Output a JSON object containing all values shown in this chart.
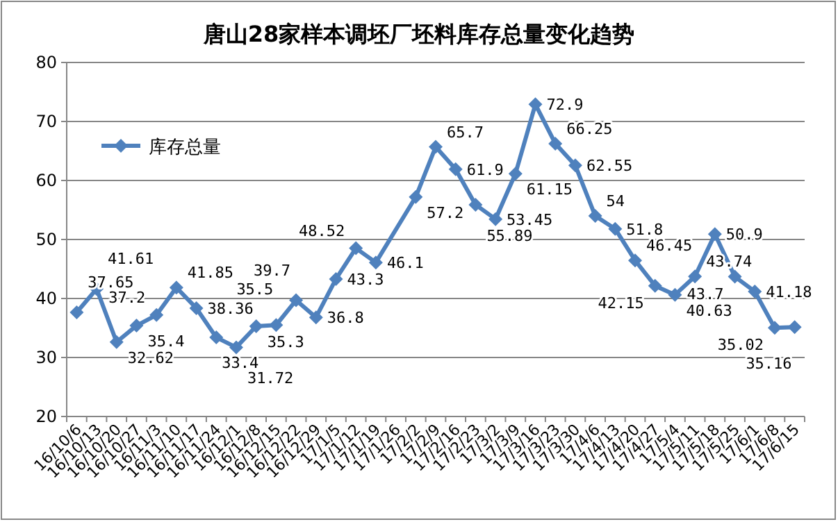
{
  "chart_data": {
    "type": "line",
    "title": "唐山28家样本调坯厂坯料库存总量变化趋势",
    "categories": [
      "16/10/6",
      "16/10/13",
      "16/10/20",
      "16/10/27",
      "16/11/3",
      "16/11/10",
      "16/11/17",
      "16/11/24",
      "16/12/1",
      "16/12/8",
      "16/12/15",
      "16/12/22",
      "16/12/29",
      "17/1/5",
      "17/1/12",
      "17/1/19",
      "17/1/26",
      "17/2/2",
      "17/2/9",
      "17/2/16",
      "17/2/23",
      "17/3/2",
      "17/3/9",
      "17/3/16",
      "17/3/23",
      "17/3/30",
      "17/4/6",
      "17/4/13",
      "17/4/20",
      "17/4/27",
      "17/5/4",
      "17/5/11",
      "17/5/18",
      "17/5/25",
      "17/6/1",
      "17/6/8",
      "17/6/15"
    ],
    "series": [
      {
        "name": "库存总量",
        "color": "#4f81bd",
        "values": [
          37.65,
          41.61,
          32.62,
          35.4,
          37.2,
          41.85,
          38.36,
          33.4,
          31.72,
          35.3,
          35.5,
          39.7,
          36.8,
          43.3,
          48.52,
          46.1,
          null,
          57.2,
          65.7,
          61.9,
          55.89,
          53.45,
          61.15,
          72.9,
          66.25,
          62.55,
          54,
          51.8,
          46.45,
          42.15,
          40.63,
          43.74,
          50.9,
          43.7,
          41.18,
          35.02,
          35.16
        ]
      }
    ],
    "ylim": [
      20,
      80
    ],
    "yticks": [
      20,
      30,
      40,
      50,
      60,
      70,
      80
    ],
    "grid": "y",
    "legend": "top left",
    "marker": "diamond",
    "line_style": "solid",
    "data_labels": true
  }
}
